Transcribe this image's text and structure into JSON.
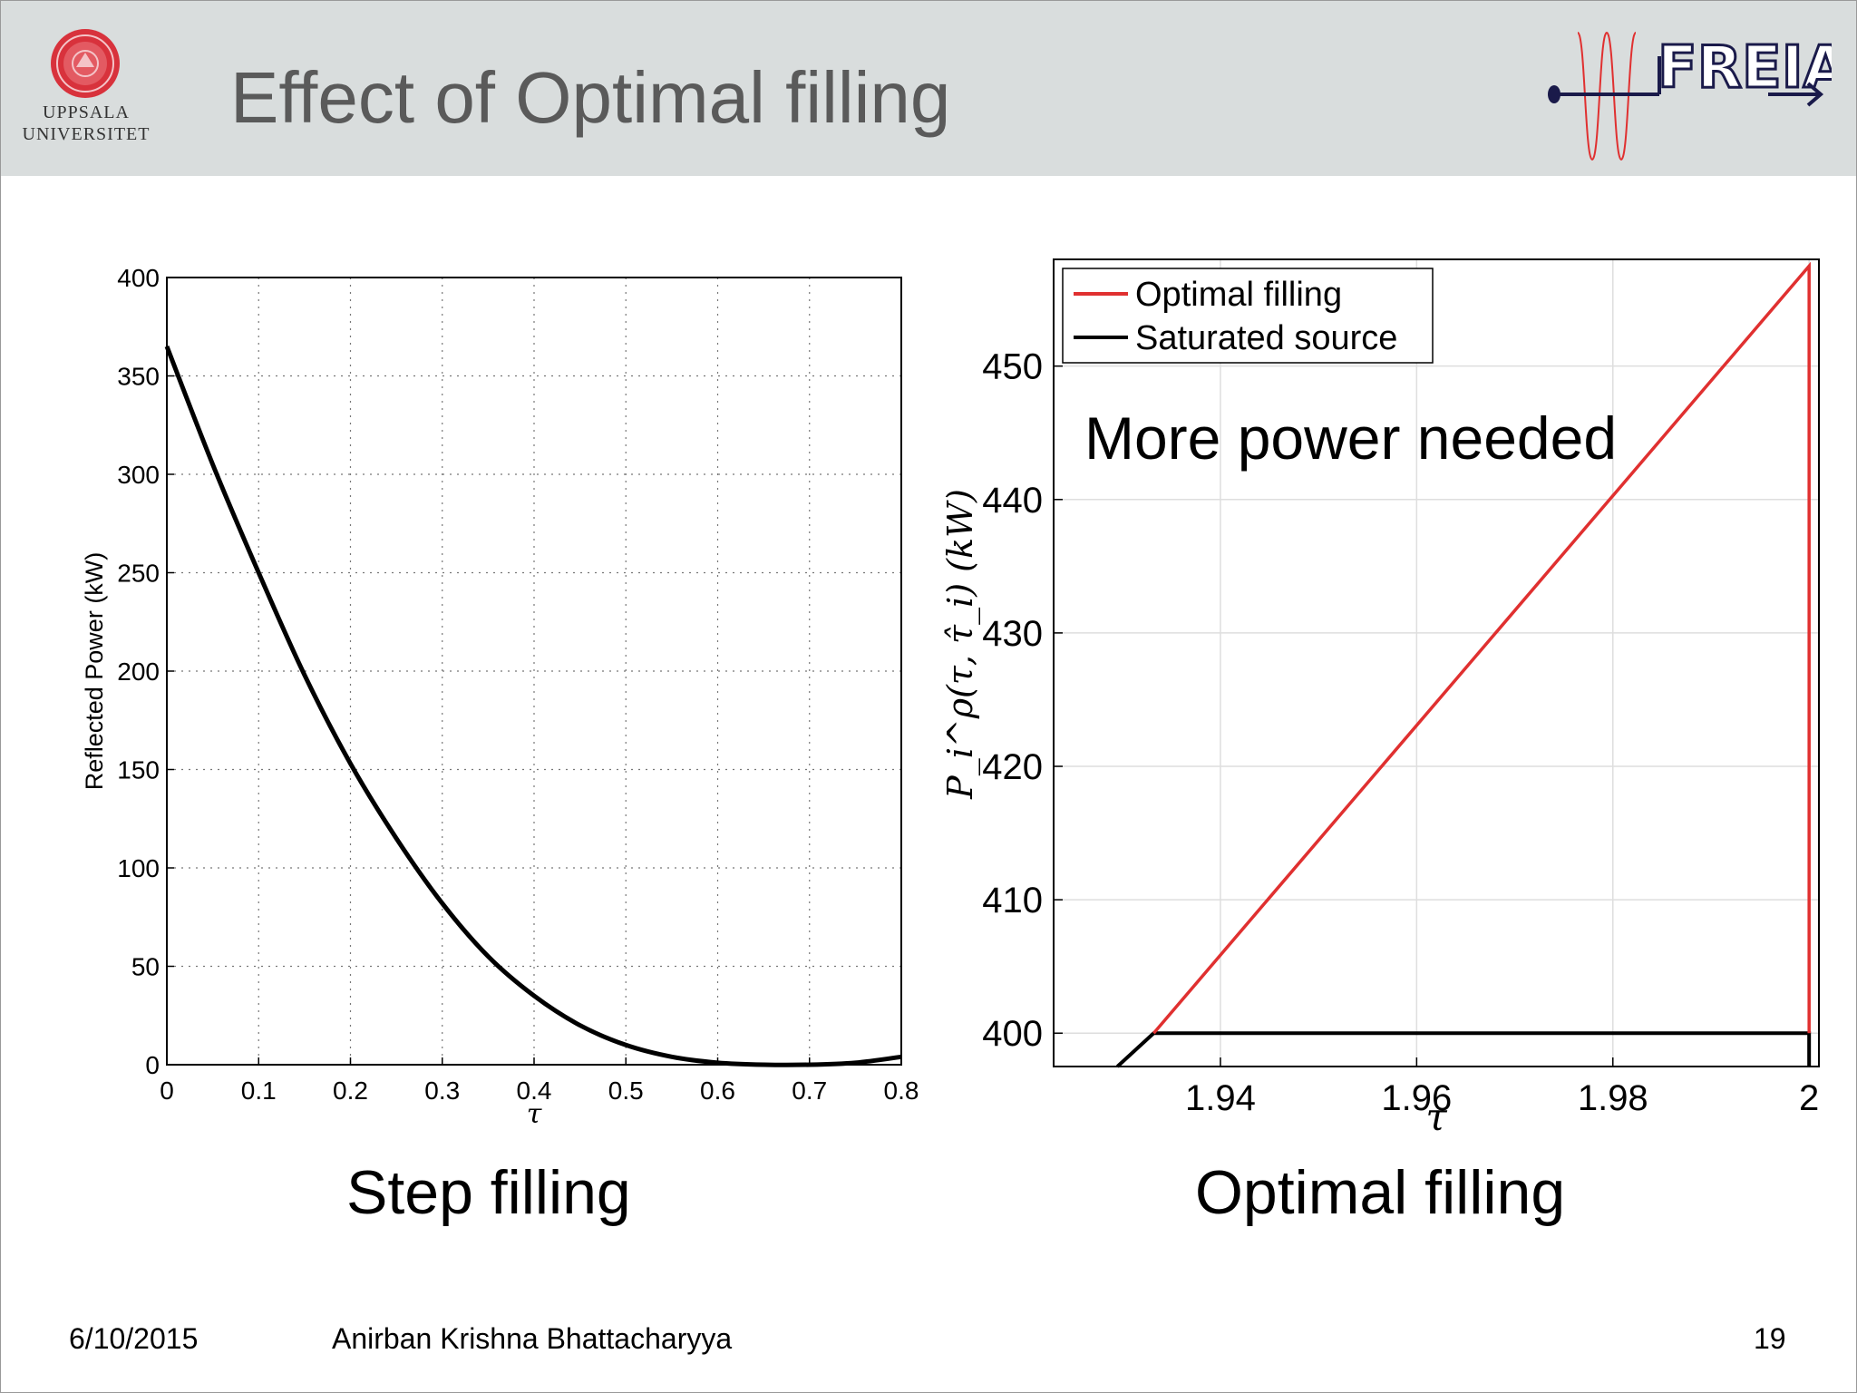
{
  "header": {
    "title": "Effect of Optimal filling",
    "university_name_line1": "UPPSALA",
    "university_name_line2": "UNIVERSITET",
    "logo_text": "FREIA"
  },
  "captions": {
    "left": "Step filling",
    "right": "Optimal filling"
  },
  "footer": {
    "date": "6/10/2015",
    "author": "Anirban Krishna Bhattacharyya",
    "page_number": "19"
  },
  "colors": {
    "optimal": "#e03030",
    "saturated": "#000000",
    "header_bg": "#d9dddd",
    "uu_red": "#d8323c"
  },
  "chart_data": [
    {
      "type": "line",
      "title": "",
      "xlabel": "τ",
      "ylabel": "Reflected Power (kW)",
      "xlim": [
        0,
        0.8
      ],
      "ylim": [
        0,
        400
      ],
      "x_ticks": [
        "0",
        "0.1",
        "0.2",
        "0.3",
        "0.4",
        "0.5",
        "0.6",
        "0.7",
        "0.8"
      ],
      "y_ticks": [
        "0",
        "50",
        "100",
        "150",
        "200",
        "250",
        "300",
        "350",
        "400"
      ],
      "grid": "dotted",
      "series": [
        {
          "x": [
            0,
            0.05,
            0.1,
            0.15,
            0.2,
            0.25,
            0.3,
            0.35,
            0.4,
            0.45,
            0.5,
            0.55,
            0.6,
            0.65,
            0.7,
            0.75,
            0.8
          ],
          "y": [
            365,
            305,
            250,
            198,
            153,
            115,
            82,
            55,
            35,
            20,
            10,
            4,
            1,
            0,
            0,
            1,
            4
          ],
          "color": "#000000"
        }
      ]
    },
    {
      "type": "line",
      "title": "",
      "xlabel": "τ",
      "ylabel": "P_i^ρ(τ, τ̂_i) (kW)",
      "xlim": [
        1.923,
        2.001
      ],
      "ylim": [
        397.5,
        458
      ],
      "x_ticks": [
        "1.94",
        "1.96",
        "1.98",
        "2"
      ],
      "y_ticks": [
        "400",
        "410",
        "420",
        "430",
        "440",
        "450"
      ],
      "grid": "solid-light",
      "legend_position": "top-left",
      "annotation": "More power needed",
      "series": [
        {
          "name": "Optimal filling",
          "color": "#e03030",
          "x": [
            1.9332,
            2.0,
            2.0
          ],
          "y": [
            400,
            457.5,
            400
          ]
        },
        {
          "name": "Saturated source",
          "color": "#000000",
          "x": [
            1.9295,
            1.9332,
            2.0,
            2.0
          ],
          "y": [
            397.5,
            400,
            400,
            397.5
          ]
        }
      ]
    }
  ]
}
